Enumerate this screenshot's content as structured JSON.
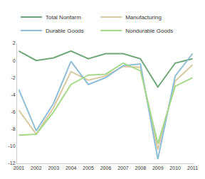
{
  "chart_data": {
    "type": "line",
    "categories": [
      "2001",
      "2002",
      "2003",
      "2004",
      "2005",
      "2006",
      "2007",
      "2008",
      "2009",
      "2010",
      "2011"
    ],
    "series": [
      {
        "name": "Total Nonfarm",
        "color": "#6fa878",
        "values": [
          1.1,
          0.0,
          0.3,
          1.1,
          0.2,
          0.8,
          0.8,
          0.2,
          -3.1,
          -0.3,
          0.2
        ]
      },
      {
        "name": "Manufacturing",
        "color": "#d9c9a0",
        "values": [
          -5.8,
          -8.6,
          -5.5,
          -1.3,
          -2.3,
          -1.8,
          -0.7,
          -0.8,
          -10.4,
          -2.4,
          -0.5
        ]
      },
      {
        "name": "Durable Goods",
        "color": "#8fbfd6",
        "values": [
          -3.4,
          -8.2,
          -5.0,
          -0.1,
          -2.8,
          -2.0,
          -0.6,
          -0.4,
          -11.5,
          -1.8,
          0.8
        ]
      },
      {
        "name": "Nondurable Goods",
        "color": "#a6d98a",
        "values": [
          -8.7,
          -8.6,
          -6.0,
          -2.8,
          -1.7,
          -1.6,
          -0.3,
          -1.2,
          -9.7,
          -3.0,
          -2.0
        ]
      }
    ],
    "ylim": [
      -12,
      2
    ],
    "yticks": [
      -12,
      -10,
      -8,
      -6,
      -4,
      -2,
      0,
      2
    ],
    "grid": false,
    "legend": "top"
  }
}
